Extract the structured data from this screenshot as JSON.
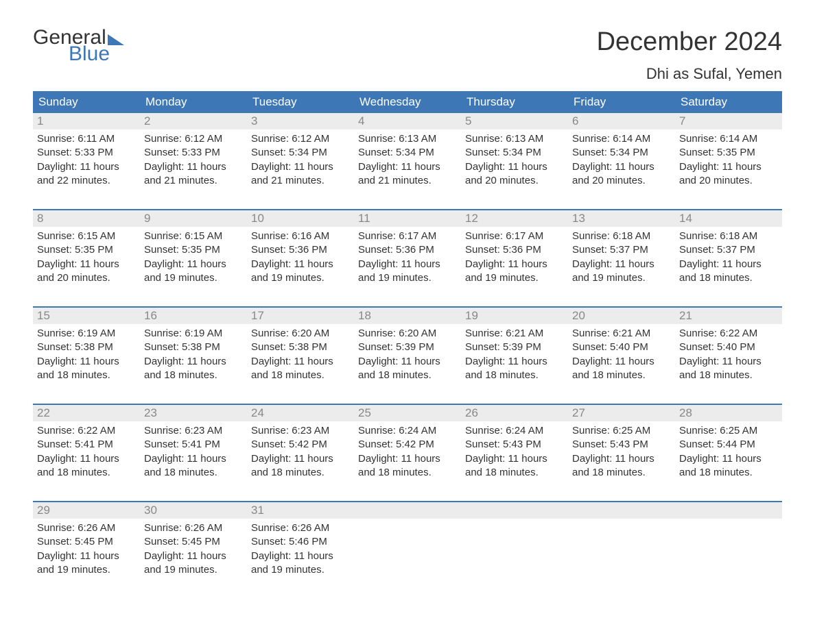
{
  "logo": {
    "word1": "General",
    "word2": "Blue"
  },
  "title": "December 2024",
  "location": "Dhi as Sufal, Yemen",
  "colors": {
    "header_bg": "#3d77b6",
    "header_text": "#ffffff",
    "daynum_bg": "#ececec",
    "daynum_text": "#888888",
    "body_text": "#333333",
    "accent": "#3d77b6",
    "page_bg": "#ffffff"
  },
  "typography": {
    "title_fontsize": 38,
    "location_fontsize": 22,
    "header_fontsize": 17,
    "body_fontsize": 15
  },
  "day_headers": [
    "Sunday",
    "Monday",
    "Tuesday",
    "Wednesday",
    "Thursday",
    "Friday",
    "Saturday"
  ],
  "weeks": [
    [
      {
        "num": "1",
        "sunrise": "Sunrise: 6:11 AM",
        "sunset": "Sunset: 5:33 PM",
        "daylight": "Daylight: 11 hours and 22 minutes."
      },
      {
        "num": "2",
        "sunrise": "Sunrise: 6:12 AM",
        "sunset": "Sunset: 5:33 PM",
        "daylight": "Daylight: 11 hours and 21 minutes."
      },
      {
        "num": "3",
        "sunrise": "Sunrise: 6:12 AM",
        "sunset": "Sunset: 5:34 PM",
        "daylight": "Daylight: 11 hours and 21 minutes."
      },
      {
        "num": "4",
        "sunrise": "Sunrise: 6:13 AM",
        "sunset": "Sunset: 5:34 PM",
        "daylight": "Daylight: 11 hours and 21 minutes."
      },
      {
        "num": "5",
        "sunrise": "Sunrise: 6:13 AM",
        "sunset": "Sunset: 5:34 PM",
        "daylight": "Daylight: 11 hours and 20 minutes."
      },
      {
        "num": "6",
        "sunrise": "Sunrise: 6:14 AM",
        "sunset": "Sunset: 5:34 PM",
        "daylight": "Daylight: 11 hours and 20 minutes."
      },
      {
        "num": "7",
        "sunrise": "Sunrise: 6:14 AM",
        "sunset": "Sunset: 5:35 PM",
        "daylight": "Daylight: 11 hours and 20 minutes."
      }
    ],
    [
      {
        "num": "8",
        "sunrise": "Sunrise: 6:15 AM",
        "sunset": "Sunset: 5:35 PM",
        "daylight": "Daylight: 11 hours and 20 minutes."
      },
      {
        "num": "9",
        "sunrise": "Sunrise: 6:15 AM",
        "sunset": "Sunset: 5:35 PM",
        "daylight": "Daylight: 11 hours and 19 minutes."
      },
      {
        "num": "10",
        "sunrise": "Sunrise: 6:16 AM",
        "sunset": "Sunset: 5:36 PM",
        "daylight": "Daylight: 11 hours and 19 minutes."
      },
      {
        "num": "11",
        "sunrise": "Sunrise: 6:17 AM",
        "sunset": "Sunset: 5:36 PM",
        "daylight": "Daylight: 11 hours and 19 minutes."
      },
      {
        "num": "12",
        "sunrise": "Sunrise: 6:17 AM",
        "sunset": "Sunset: 5:36 PM",
        "daylight": "Daylight: 11 hours and 19 minutes."
      },
      {
        "num": "13",
        "sunrise": "Sunrise: 6:18 AM",
        "sunset": "Sunset: 5:37 PM",
        "daylight": "Daylight: 11 hours and 19 minutes."
      },
      {
        "num": "14",
        "sunrise": "Sunrise: 6:18 AM",
        "sunset": "Sunset: 5:37 PM",
        "daylight": "Daylight: 11 hours and 18 minutes."
      }
    ],
    [
      {
        "num": "15",
        "sunrise": "Sunrise: 6:19 AM",
        "sunset": "Sunset: 5:38 PM",
        "daylight": "Daylight: 11 hours and 18 minutes."
      },
      {
        "num": "16",
        "sunrise": "Sunrise: 6:19 AM",
        "sunset": "Sunset: 5:38 PM",
        "daylight": "Daylight: 11 hours and 18 minutes."
      },
      {
        "num": "17",
        "sunrise": "Sunrise: 6:20 AM",
        "sunset": "Sunset: 5:38 PM",
        "daylight": "Daylight: 11 hours and 18 minutes."
      },
      {
        "num": "18",
        "sunrise": "Sunrise: 6:20 AM",
        "sunset": "Sunset: 5:39 PM",
        "daylight": "Daylight: 11 hours and 18 minutes."
      },
      {
        "num": "19",
        "sunrise": "Sunrise: 6:21 AM",
        "sunset": "Sunset: 5:39 PM",
        "daylight": "Daylight: 11 hours and 18 minutes."
      },
      {
        "num": "20",
        "sunrise": "Sunrise: 6:21 AM",
        "sunset": "Sunset: 5:40 PM",
        "daylight": "Daylight: 11 hours and 18 minutes."
      },
      {
        "num": "21",
        "sunrise": "Sunrise: 6:22 AM",
        "sunset": "Sunset: 5:40 PM",
        "daylight": "Daylight: 11 hours and 18 minutes."
      }
    ],
    [
      {
        "num": "22",
        "sunrise": "Sunrise: 6:22 AM",
        "sunset": "Sunset: 5:41 PM",
        "daylight": "Daylight: 11 hours and 18 minutes."
      },
      {
        "num": "23",
        "sunrise": "Sunrise: 6:23 AM",
        "sunset": "Sunset: 5:41 PM",
        "daylight": "Daylight: 11 hours and 18 minutes."
      },
      {
        "num": "24",
        "sunrise": "Sunrise: 6:23 AM",
        "sunset": "Sunset: 5:42 PM",
        "daylight": "Daylight: 11 hours and 18 minutes."
      },
      {
        "num": "25",
        "sunrise": "Sunrise: 6:24 AM",
        "sunset": "Sunset: 5:42 PM",
        "daylight": "Daylight: 11 hours and 18 minutes."
      },
      {
        "num": "26",
        "sunrise": "Sunrise: 6:24 AM",
        "sunset": "Sunset: 5:43 PM",
        "daylight": "Daylight: 11 hours and 18 minutes."
      },
      {
        "num": "27",
        "sunrise": "Sunrise: 6:25 AM",
        "sunset": "Sunset: 5:43 PM",
        "daylight": "Daylight: 11 hours and 18 minutes."
      },
      {
        "num": "28",
        "sunrise": "Sunrise: 6:25 AM",
        "sunset": "Sunset: 5:44 PM",
        "daylight": "Daylight: 11 hours and 18 minutes."
      }
    ],
    [
      {
        "num": "29",
        "sunrise": "Sunrise: 6:26 AM",
        "sunset": "Sunset: 5:45 PM",
        "daylight": "Daylight: 11 hours and 19 minutes."
      },
      {
        "num": "30",
        "sunrise": "Sunrise: 6:26 AM",
        "sunset": "Sunset: 5:45 PM",
        "daylight": "Daylight: 11 hours and 19 minutes."
      },
      {
        "num": "31",
        "sunrise": "Sunrise: 6:26 AM",
        "sunset": "Sunset: 5:46 PM",
        "daylight": "Daylight: 11 hours and 19 minutes."
      },
      {
        "empty": true
      },
      {
        "empty": true
      },
      {
        "empty": true
      },
      {
        "empty": true
      }
    ]
  ]
}
